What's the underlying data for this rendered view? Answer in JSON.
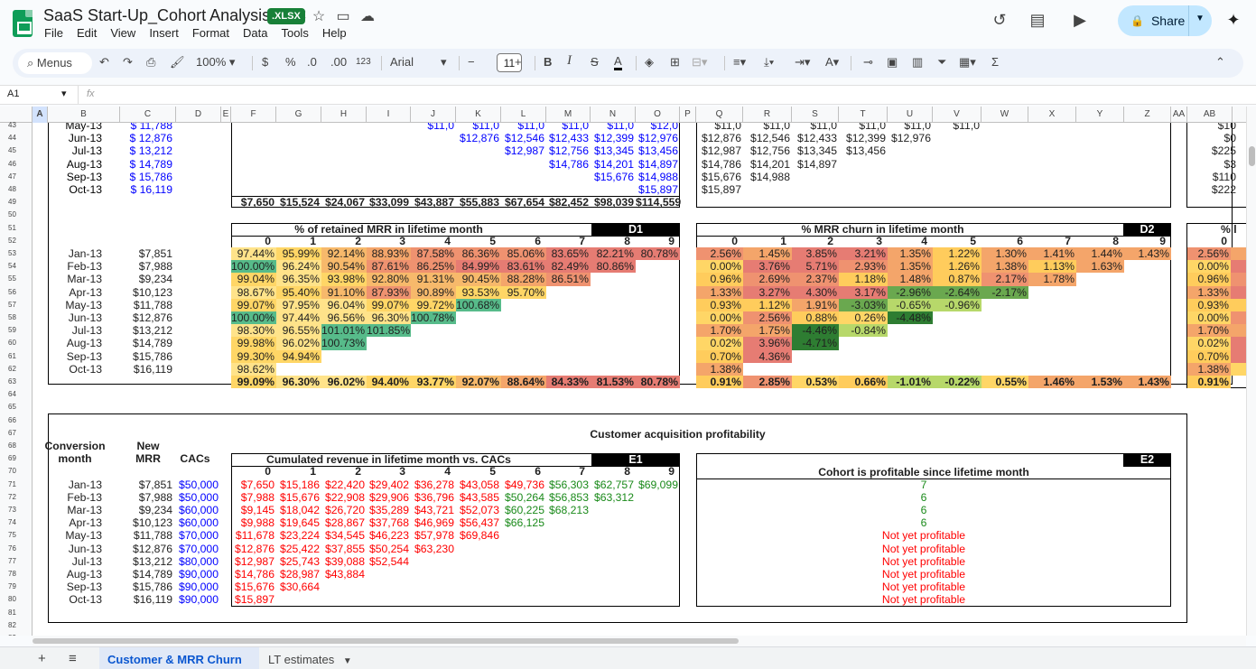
{
  "app": {
    "doc_title": "SaaS Start-Up_Cohort Analysis_ VC",
    "badge": ".XLSX",
    "menus": [
      "File",
      "Edit",
      "View",
      "Insert",
      "Format",
      "Data",
      "Tools",
      "Help"
    ],
    "share_label": "Share"
  },
  "toolbar": {
    "menus_label": "Menus",
    "zoom": "100%",
    "currency": "$",
    "percent": "%",
    "dec_less": ".0",
    "dec_more": ".00",
    "num_format": "123",
    "font": "Arial",
    "font_size": "11"
  },
  "formula_bar": {
    "cell_ref": "A1",
    "fx": "fx"
  },
  "columns": [
    "A",
    "B",
    "C",
    "D",
    "E",
    "F",
    "G",
    "H",
    "I",
    "J",
    "K",
    "L",
    "M",
    "N",
    "O",
    "P",
    "Q",
    "R",
    "S",
    "T",
    "U",
    "V",
    "W",
    "X",
    "Y",
    "Z",
    "AA",
    "AB"
  ],
  "rows": [
    "43",
    "44",
    "45",
    "46",
    "47",
    "48",
    "49",
    "50",
    "51",
    "52",
    "53",
    "54",
    "55",
    "56",
    "57",
    "58",
    "59",
    "60",
    "61",
    "62",
    "63",
    "64",
    "65",
    "66",
    "67",
    "68",
    "69",
    "70",
    "71",
    "72",
    "73",
    "74",
    "75",
    "76",
    "77",
    "78",
    "79",
    "80",
    "81",
    "82",
    "83"
  ],
  "top": {
    "months": [
      "May-13",
      "Jun-13",
      "Jul-13",
      "Aug-13",
      "Sep-13",
      "Oct-13"
    ],
    "mrr": [
      "$    11,788",
      "$    12,876",
      "$    13,212",
      "$    14,789",
      "$    15,786",
      "$    16,119"
    ],
    "blue_block": [
      [
        "$11,0",
        "$11,0",
        "$11,0",
        "$11,0",
        "$11,0",
        "$12,0"
      ],
      [
        "",
        "$12,876",
        "$12,546",
        "$12,433",
        "$12,399",
        "$12,976"
      ],
      [
        "",
        "",
        "$12,987",
        "$12,756",
        "$13,345",
        "$13,456"
      ],
      [
        "",
        "",
        "",
        "$14,786",
        "$14,201",
        "$14,897"
      ],
      [
        "",
        "",
        "",
        "",
        "$15,676",
        "$14,988"
      ],
      [
        "",
        "",
        "",
        "",
        "",
        "$15,897"
      ]
    ],
    "totals": [
      "$7,650",
      "$15,524",
      "$24,067",
      "$33,099",
      "$43,887",
      "$55,883",
      "$67,654",
      "$82,452",
      "$98,039",
      "$114,559"
    ],
    "mid_block": [
      [
        "$11,0",
        "$11,0",
        "$11,0",
        "$11,0",
        "$11,0",
        "$11,0"
      ],
      [
        "$12,876",
        "$12,546",
        "$12,433",
        "$12,399",
        "$12,976",
        ""
      ],
      [
        "$12,987",
        "$12,756",
        "$13,345",
        "$13,456",
        "",
        ""
      ],
      [
        "$14,786",
        "$14,201",
        "$14,897",
        "",
        "",
        ""
      ],
      [
        "$15,676",
        "$14,988",
        "",
        "",
        "",
        ""
      ],
      [
        "$15,897",
        "",
        "",
        "",
        "",
        ""
      ]
    ],
    "right_col": [
      "$10",
      "$0",
      "$225",
      "$3",
      "$110",
      "$222"
    ]
  },
  "d1": {
    "title": "% of retained MRR in lifetime month",
    "tag": "D1",
    "headers": [
      "0",
      "1",
      "2",
      "3",
      "4",
      "5",
      "6",
      "7",
      "8",
      "9"
    ],
    "months": [
      "Jan-13",
      "Feb-13",
      "Mar-13",
      "Apr-13",
      "May-13",
      "Jun-13",
      "Jul-13",
      "Aug-13",
      "Sep-13",
      "Oct-13"
    ],
    "mrr": [
      "$7,851",
      "$7,988",
      "$9,234",
      "$10,123",
      "$11,788",
      "$12,876",
      "$13,212",
      "$14,789",
      "$15,786",
      "$16,119"
    ],
    "rows": [
      [
        "97.44%",
        "95.99%",
        "92.14%",
        "88.93%",
        "87.58%",
        "86.36%",
        "85.06%",
        "83.65%",
        "82.21%",
        "80.78%"
      ],
      [
        "100.00%",
        "96.24%",
        "90.54%",
        "87.61%",
        "86.25%",
        "84.99%",
        "83.61%",
        "82.49%",
        "80.86%"
      ],
      [
        "99.04%",
        "96.35%",
        "93.98%",
        "92.80%",
        "91.31%",
        "90.45%",
        "88.28%",
        "86.51%"
      ],
      [
        "98.67%",
        "95.40%",
        "91.10%",
        "87.93%",
        "90.89%",
        "93.53%",
        "95.70%"
      ],
      [
        "99.07%",
        "97.95%",
        "96.04%",
        "99.07%",
        "99.72%",
        "100.68%"
      ],
      [
        "100.00%",
        "97.44%",
        "96.56%",
        "96.30%",
        "100.78%"
      ],
      [
        "98.30%",
        "96.55%",
        "101.01%",
        "101.85%"
      ],
      [
        "99.98%",
        "96.02%",
        "100.73%"
      ],
      [
        "99.30%",
        "94.94%"
      ],
      [
        "98.62%"
      ]
    ],
    "avg": [
      "99.09%",
      "96.30%",
      "96.02%",
      "94.40%",
      "93.77%",
      "92.07%",
      "88.64%",
      "84.33%",
      "81.53%",
      "80.78%"
    ]
  },
  "d2": {
    "title": "% MRR churn in lifetime month",
    "tag": "D2",
    "headers": [
      "0",
      "1",
      "2",
      "3",
      "4",
      "5",
      "6",
      "7",
      "8",
      "9"
    ],
    "rows": [
      [
        "2.56%",
        "1.45%",
        "3.85%",
        "3.21%",
        "1.35%",
        "1.22%",
        "1.30%",
        "1.41%",
        "1.44%",
        "1.43%"
      ],
      [
        "0.00%",
        "3.76%",
        "5.71%",
        "2.93%",
        "1.35%",
        "1.26%",
        "1.38%",
        "1.13%",
        "1.63%"
      ],
      [
        "0.96%",
        "2.69%",
        "2.37%",
        "1.18%",
        "1.48%",
        "0.87%",
        "2.17%",
        "1.78%"
      ],
      [
        "1.33%",
        "3.27%",
        "4.30%",
        "3.17%",
        "-2.96%",
        "-2.64%",
        "-2.17%"
      ],
      [
        "0.93%",
        "1.12%",
        "1.91%",
        "-3.03%",
        "-0.65%",
        "-0.96%"
      ],
      [
        "0.00%",
        "2.56%",
        "0.88%",
        "0.26%",
        "-4.48%"
      ],
      [
        "1.70%",
        "1.75%",
        "-4.46%",
        "-0.84%"
      ],
      [
        "0.02%",
        "3.96%",
        "-4.71%"
      ],
      [
        "0.70%",
        "4.36%"
      ],
      [
        "1.38%"
      ]
    ],
    "avg": [
      "0.91%",
      "2.85%",
      "0.53%",
      "0.66%",
      "-1.01%",
      "-0.22%",
      "0.55%",
      "1.46%",
      "1.53%",
      "1.43%"
    ]
  },
  "d3": {
    "title": "% l",
    "header0": "0",
    "col0": [
      "2.56%",
      "0.00%",
      "0.96%",
      "1.33%",
      "0.93%",
      "0.00%",
      "1.70%",
      "0.02%",
      "0.70%",
      "1.38%"
    ],
    "avg0": "0.91%"
  },
  "cap": {
    "title": "Customer acquisition profitability",
    "h_conv": "Conversion",
    "h_month": "month",
    "h_new": "New",
    "h_mrr": "MRR",
    "h_cacs": "CACs",
    "months": [
      "Jan-13",
      "Feb-13",
      "Mar-13",
      "Apr-13",
      "May-13",
      "Jun-13",
      "Jul-13",
      "Aug-13",
      "Sep-13",
      "Oct-13"
    ],
    "mrr": [
      "$7,851",
      "$7,988",
      "$9,234",
      "$10,123",
      "$11,788",
      "$12,876",
      "$13,212",
      "$14,789",
      "$15,786",
      "$16,119"
    ],
    "cacs": [
      "$50,000",
      "$50,000",
      "$60,000",
      "$60,000",
      "$70,000",
      "$70,000",
      "$80,000",
      "$90,000",
      "$90,000",
      "$90,000"
    ]
  },
  "e1": {
    "title": "Cumulated revenue in lifetime month vs. CACs",
    "tag": "E1",
    "headers": [
      "0",
      "1",
      "2",
      "3",
      "4",
      "5",
      "6",
      "7",
      "8",
      "9"
    ],
    "rows": [
      [
        "$7,650",
        "$15,186",
        "$22,420",
        "$29,402",
        "$36,278",
        "$43,058",
        "$49,736",
        "$56,303",
        "$62,757",
        "$69,099"
      ],
      [
        "$7,988",
        "$15,676",
        "$22,908",
        "$29,906",
        "$36,796",
        "$43,585",
        "$50,264",
        "$56,853",
        "$63,312"
      ],
      [
        "$9,145",
        "$18,042",
        "$26,720",
        "$35,289",
        "$43,721",
        "$52,073",
        "$60,225",
        "$68,213"
      ],
      [
        "$9,988",
        "$19,645",
        "$28,867",
        "$37,768",
        "$46,969",
        "$56,437",
        "$66,125"
      ],
      [
        "$11,678",
        "$23,224",
        "$34,545",
        "$46,223",
        "$57,978",
        "$69,846"
      ],
      [
        "$12,876",
        "$25,422",
        "$37,855",
        "$50,254",
        "$63,230"
      ],
      [
        "$12,987",
        "$25,743",
        "$39,088",
        "$52,544"
      ],
      [
        "$14,786",
        "$28,987",
        "$43,884"
      ],
      [
        "$15,676",
        "$30,664"
      ],
      [
        "$15,897"
      ]
    ]
  },
  "e2": {
    "title": "Cohort is profitable since lifetime month",
    "tag": "E2",
    "rows": [
      "7",
      "6",
      "6",
      "6",
      "Not yet profitable",
      "Not yet profitable",
      "Not yet profitable",
      "Not yet profitable",
      "Not yet profitable",
      "Not yet profitable"
    ]
  },
  "sheets": {
    "active": "Customer & MRR Churn",
    "other": "LT estimates"
  },
  "colors": {
    "red": "#e67c73",
    "orange": "#f4a56a",
    "yellow": "#ffd666",
    "lgreen": "#b7d86a",
    "green": "#57bb8a",
    "dgreen": "#2e7d32"
  }
}
